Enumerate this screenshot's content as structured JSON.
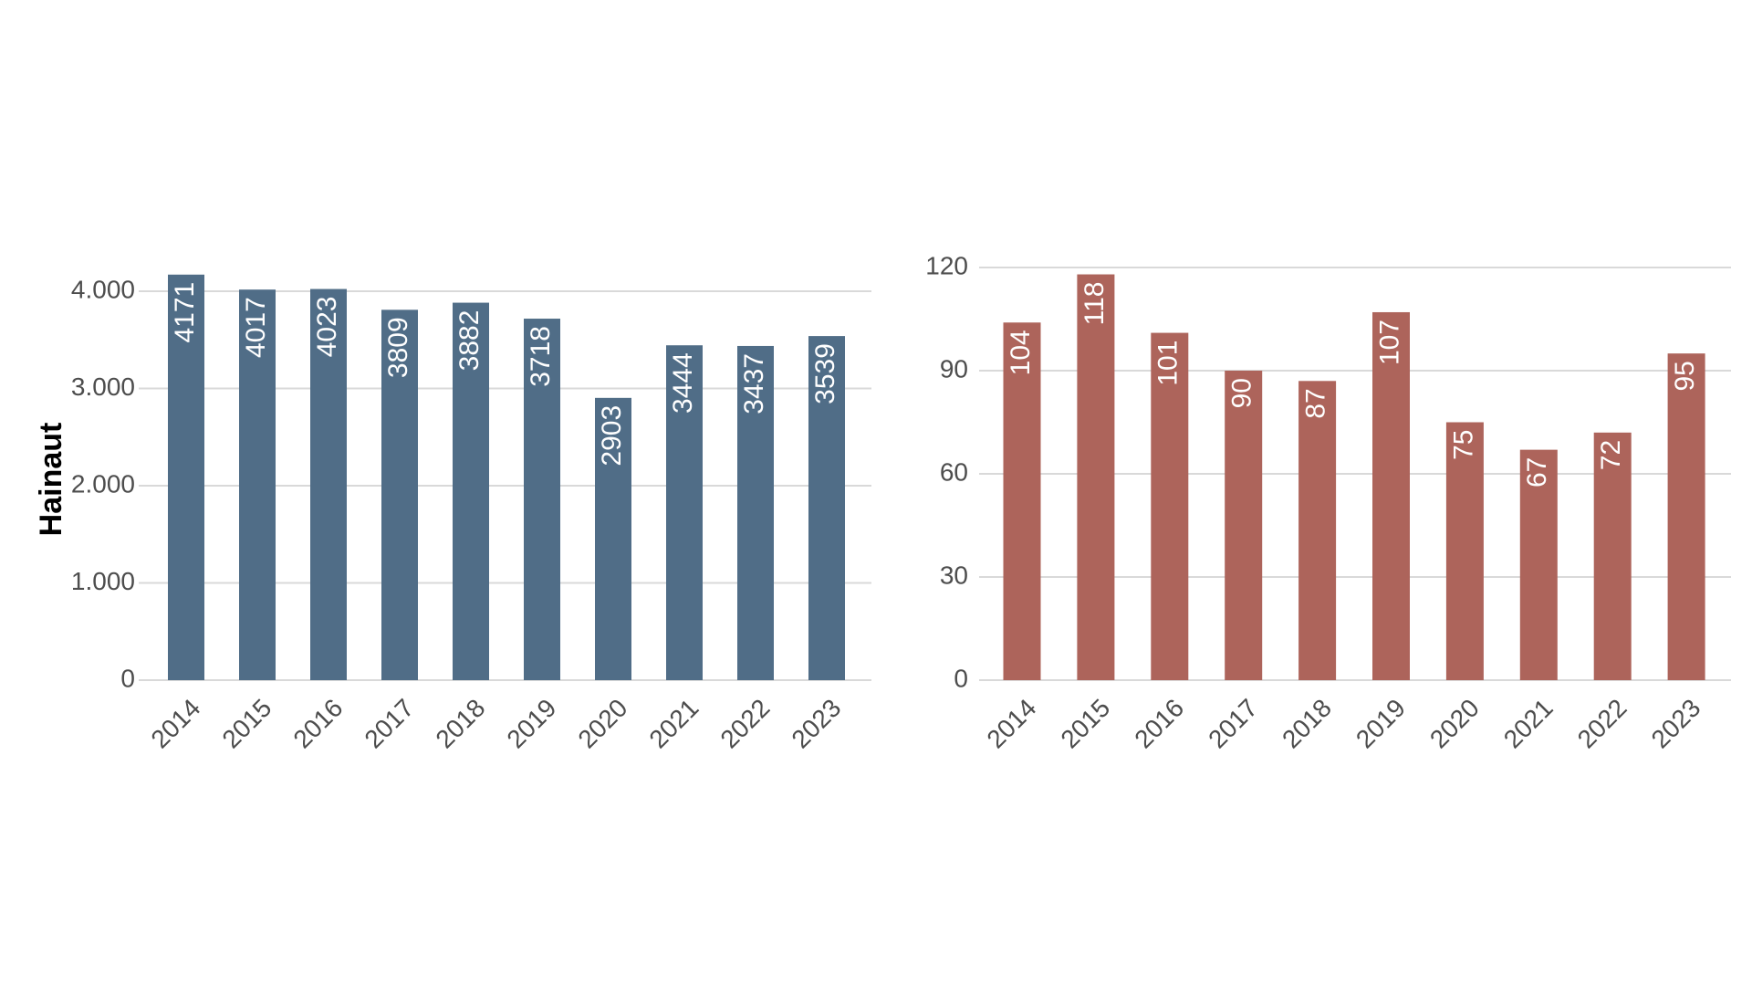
{
  "chart_data": [
    {
      "type": "bar",
      "ylabel": "Hainaut",
      "categories": [
        "2014",
        "2015",
        "2016",
        "2017",
        "2018",
        "2019",
        "2020",
        "2021",
        "2022",
        "2023"
      ],
      "values": [
        4171,
        4017,
        4023,
        3809,
        3882,
        3718,
        2903,
        3444,
        3437,
        3539
      ],
      "ylim": [
        0,
        4200
      ],
      "yticks": [
        0,
        1000,
        2000,
        3000,
        4000
      ],
      "ytick_labels": [
        "0",
        "1.000",
        "2.000",
        "3.000",
        "4.000"
      ],
      "color": "#506d87",
      "grid": true
    },
    {
      "type": "bar",
      "ylabel": "",
      "categories": [
        "2014",
        "2015",
        "2016",
        "2017",
        "2018",
        "2019",
        "2020",
        "2021",
        "2022",
        "2023"
      ],
      "values": [
        104,
        118,
        101,
        90,
        87,
        107,
        75,
        67,
        72,
        95
      ],
      "ylim": [
        0,
        120
      ],
      "yticks": [
        0,
        30,
        60,
        90,
        120
      ],
      "ytick_labels": [
        "0",
        "30",
        "60",
        "90",
        "120"
      ],
      "color": "#ad645b",
      "grid": true
    }
  ]
}
